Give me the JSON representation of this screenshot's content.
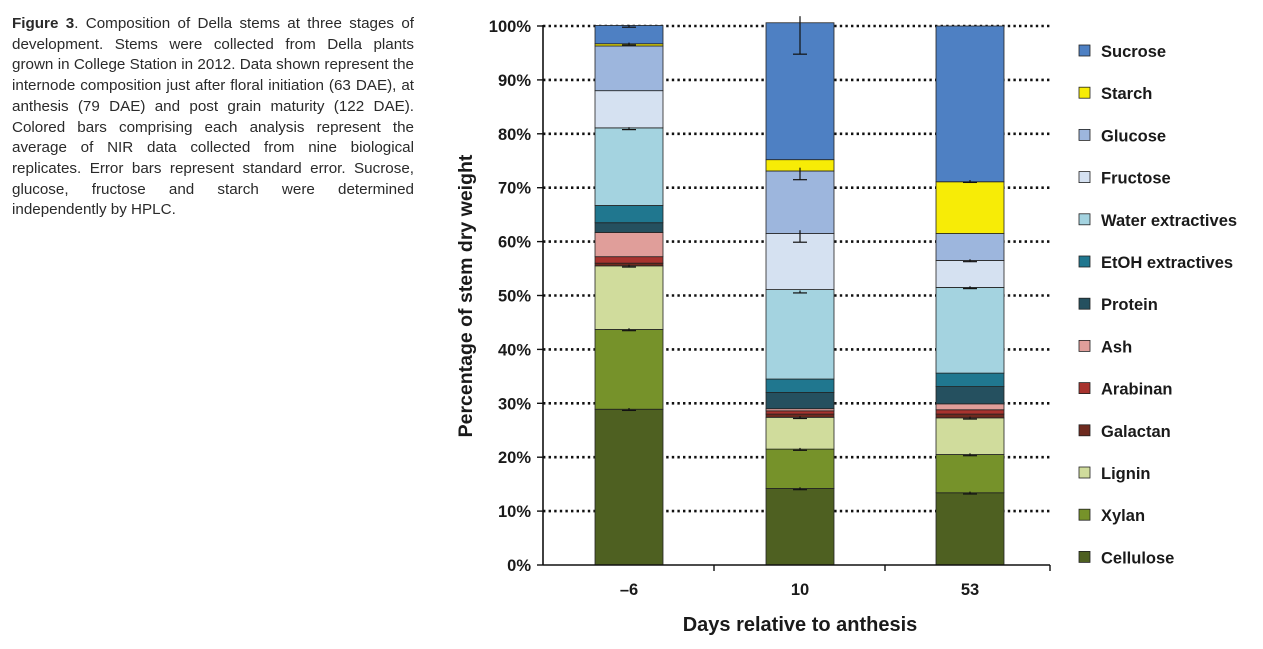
{
  "caption": {
    "label": "Figure 3",
    "text": ". Composition of Della stems at three stages of development. Stems were collected from Della plants grown in College Station in 2012. Data shown represent the internode composition just after floral initiation (63 DAE), at anthesis (79 DAE) and post grain maturity (122 DAE). Colored bars comprising each analysis represent the average of NIR data collected from nine biological replicates. Error bars represent standard error. Sucrose, glucose, fructose and starch were determined independently by HPLC."
  },
  "chart_data": {
    "type": "bar",
    "stacked": true,
    "percent": true,
    "xlabel": "Days relative to anthesis",
    "ylabel": "Percentage of stem dry weight",
    "ylim": [
      0,
      100
    ],
    "yticks": [
      "0%",
      "10%",
      "20%",
      "30%",
      "40%",
      "50%",
      "60%",
      "70%",
      "80%",
      "90%",
      "100%"
    ],
    "grid": "dotted horizontal",
    "legend": "right",
    "categories": [
      "–6",
      "10",
      "53"
    ],
    "series": [
      {
        "name": "Cellulose",
        "color": "#4e6021",
        "values": [
          28.9,
          14.2,
          13.4
        ]
      },
      {
        "name": "Xylan",
        "color": "#76922a",
        "values": [
          14.8,
          7.3,
          7.1
        ]
      },
      {
        "name": "Lignin",
        "color": "#d0dc9c",
        "values": [
          11.8,
          5.9,
          6.8
        ]
      },
      {
        "name": "Galactan",
        "color": "#6e2a1f",
        "values": [
          0.5,
          0.6,
          0.7
        ]
      },
      {
        "name": "Arabinan",
        "color": "#a8332e",
        "values": [
          1.2,
          0.6,
          0.8
        ]
      },
      {
        "name": "Ash",
        "color": "#e09e9a",
        "values": [
          4.5,
          0.4,
          1.1
        ]
      },
      {
        "name": "Protein",
        "color": "#25505f",
        "values": [
          1.8,
          3.0,
          3.2
        ]
      },
      {
        "name": "EtOH extractives",
        "color": "#20778f",
        "values": [
          3.2,
          2.5,
          2.5
        ]
      },
      {
        "name": "Water extractives",
        "color": "#a4d3e0",
        "values": [
          14.4,
          16.6,
          15.9
        ]
      },
      {
        "name": "Fructose",
        "color": "#d5e1f1",
        "values": [
          6.9,
          10.4,
          5.0
        ]
      },
      {
        "name": "Glucose",
        "color": "#9db6dd",
        "values": [
          8.3,
          11.6,
          5.0
        ]
      },
      {
        "name": "Starch",
        "color": "#f7ec06",
        "values": [
          0.4,
          2.1,
          9.6
        ]
      },
      {
        "name": "Sucrose",
        "color": "#4e80c3",
        "values": [
          3.4,
          25.4,
          28.9
        ]
      }
    ],
    "error_bars_at_cumulative_top": [
      [
        28.9,
        43.7,
        55.5,
        81.0,
        96.7,
        100.0
      ],
      [
        14.2,
        21.5,
        27.4,
        50.7,
        61.0,
        72.6,
        98.3
      ],
      [
        13.4,
        20.5,
        27.3,
        51.5,
        56.5,
        71.2
      ]
    ]
  }
}
